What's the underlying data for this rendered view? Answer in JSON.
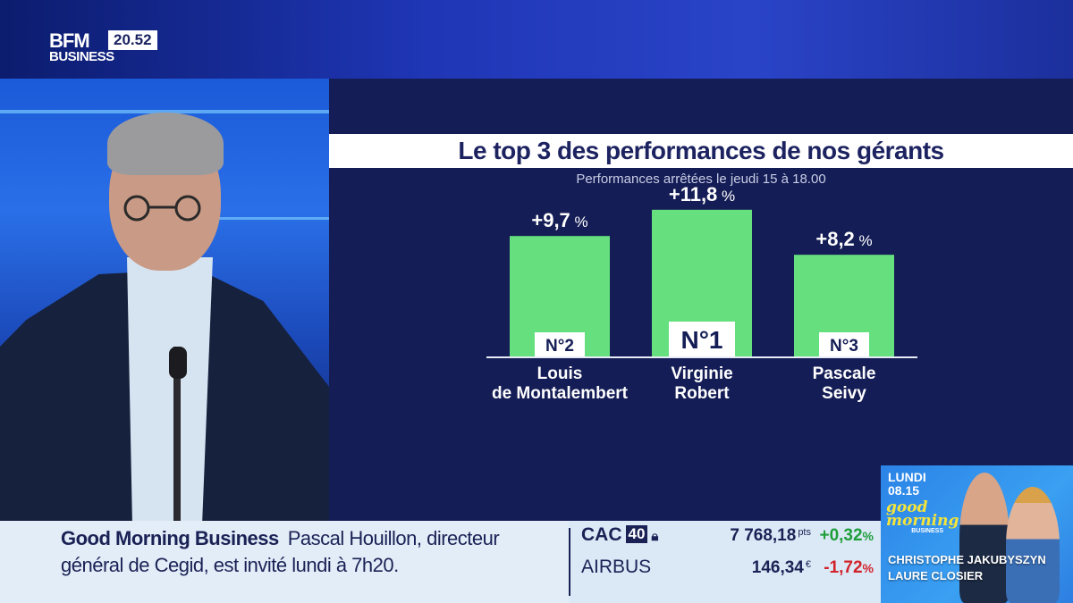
{
  "broadcast": {
    "logo_top": "BFM",
    "logo_bottom": "BUSINESS",
    "clock": "20.52"
  },
  "chart_data": {
    "type": "bar",
    "title": "Le top 3 des performances de nos gérants",
    "subtitle": "Performances arrêtées le jeudi 15 à 18.00",
    "categories": [
      "Louis de Montalembert",
      "Virginie Robert",
      "Pascale Seivy"
    ],
    "category_lines": [
      [
        "Louis",
        "de Montalembert"
      ],
      [
        "Virginie",
        "Robert"
      ],
      [
        "Pascale",
        "Seivy"
      ]
    ],
    "values": [
      9.7,
      11.8,
      8.2
    ],
    "value_labels": [
      "+9,7",
      "+11,8",
      "+8,2"
    ],
    "unit": "%",
    "ranks": [
      "N°2",
      "N°1",
      "N°3"
    ],
    "bar_color": "#66e07f",
    "ylim": [
      0,
      12
    ],
    "grid": false
  },
  "ticker": {
    "show_name": "Good Morning Business",
    "headline": "Pascal Houillon, directeur général de Cegid, est invité lundi à 7h20."
  },
  "market": {
    "rows": [
      {
        "name": "CAC",
        "badge": "40",
        "lock_icon": "lock-icon",
        "value": "7 768,18",
        "unit": "pts",
        "change": "+0,32",
        "pct": "%",
        "color": "#1f9e3a"
      },
      {
        "name": "AIRBUS",
        "badge": "",
        "value": "146,34",
        "unit": "€",
        "change": "-1,72",
        "pct": "%",
        "color": "#d2232a"
      }
    ]
  },
  "promo": {
    "day": "LUNDI",
    "date": "08.15",
    "logo_line1": "good",
    "logo_line2": "morning",
    "logo_line3": "BUSINESS",
    "presenter1": "CHRISTOPHE JAKUBYSZYN",
    "presenter2": "LAURE CLOSIER"
  },
  "colors": {
    "panel_bg": "#141d55",
    "title_text": "#1c2360",
    "axis_line": "#e8ecf7"
  }
}
